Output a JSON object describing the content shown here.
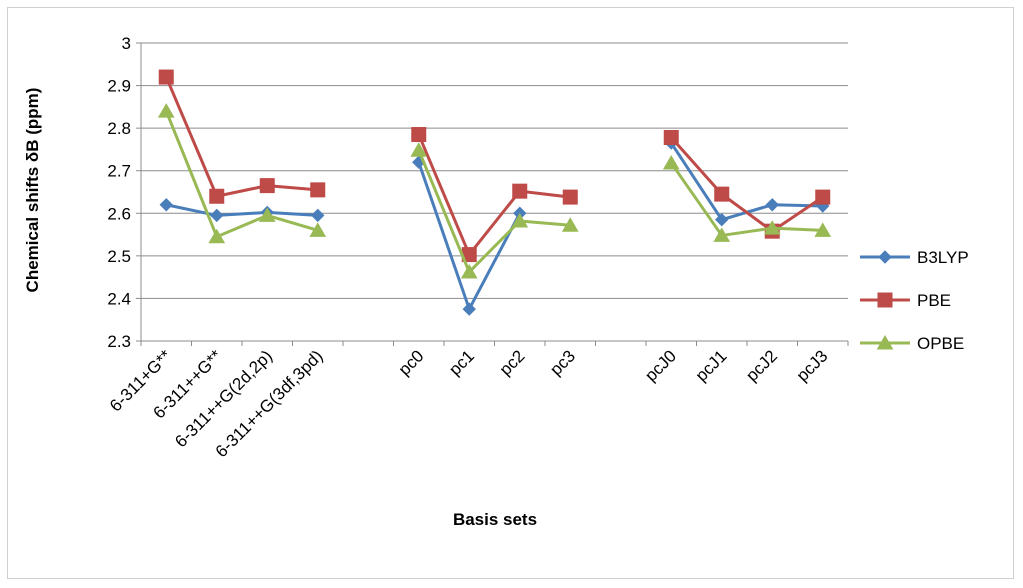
{
  "chart_data": {
    "type": "line",
    "title": "",
    "xlabel": "Basis sets",
    "ylabel": "Chemical shifts δB (ppm)",
    "ylim": [
      2.3,
      3.0
    ],
    "yticks": [
      "2.3",
      "2.4",
      "2.5",
      "2.6",
      "2.7",
      "2.8",
      "2.9",
      "3"
    ],
    "grid": "horizontal",
    "legend_position": "right",
    "categories": [
      "6-311+G**",
      "6-311++G**",
      "6-311++G(2d,2p)",
      "6-311++G(3df,3pd)",
      "",
      "pc0",
      "pc1",
      "pc2",
      "pc3",
      "",
      "pcJ0",
      "pcJ1",
      "pcJ2",
      "pcJ3"
    ],
    "series": [
      {
        "name": "B3LYP",
        "color": "#4a7ebb",
        "marker": "diamond",
        "values": [
          2.62,
          2.595,
          2.602,
          2.595,
          null,
          2.72,
          2.375,
          2.6,
          null,
          null,
          2.765,
          2.585,
          2.62,
          2.617
        ]
      },
      {
        "name": "PBE",
        "color": "#be4b48",
        "marker": "square",
        "values": [
          2.92,
          2.64,
          2.665,
          2.655,
          null,
          2.785,
          2.503,
          2.652,
          2.638,
          null,
          2.778,
          2.645,
          2.558,
          2.638
        ]
      },
      {
        "name": "OPBE",
        "color": "#98b954",
        "marker": "triangle",
        "values": [
          2.84,
          2.545,
          2.595,
          2.56,
          null,
          2.748,
          2.462,
          2.582,
          2.572,
          null,
          2.718,
          2.548,
          2.565,
          2.56
        ]
      }
    ]
  }
}
